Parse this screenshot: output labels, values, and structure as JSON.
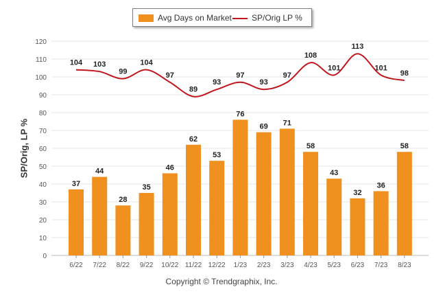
{
  "copyright": "Copyright © Trendgraphix, Inc.",
  "chart_data": {
    "type": "bar",
    "categories": [
      "6/22",
      "7/22",
      "8/22",
      "9/22",
      "10/22",
      "11/22",
      "12/22",
      "1/23",
      "2/23",
      "3/23",
      "4/23",
      "5/23",
      "6/23",
      "7/23",
      "8/23"
    ],
    "series": [
      {
        "name": "Avg Days on Market",
        "type": "bar",
        "color": "#f0901e",
        "values": [
          37,
          44,
          28,
          35,
          46,
          62,
          53,
          76,
          69,
          71,
          58,
          43,
          32,
          36,
          58
        ]
      },
      {
        "name": "SP/Orig LP %",
        "type": "line",
        "color": "#c0151b",
        "values": [
          104,
          103,
          99,
          104,
          97,
          89,
          93,
          97,
          93,
          97,
          108,
          101,
          113,
          101,
          98
        ]
      }
    ],
    "ylabel": "SP/Orig, LP %",
    "ylim": [
      0,
      120
    ],
    "yticks": [
      0,
      10,
      20,
      30,
      40,
      50,
      60,
      70,
      80,
      90,
      100,
      110,
      120
    ],
    "grid": true,
    "legend": "top-center"
  }
}
